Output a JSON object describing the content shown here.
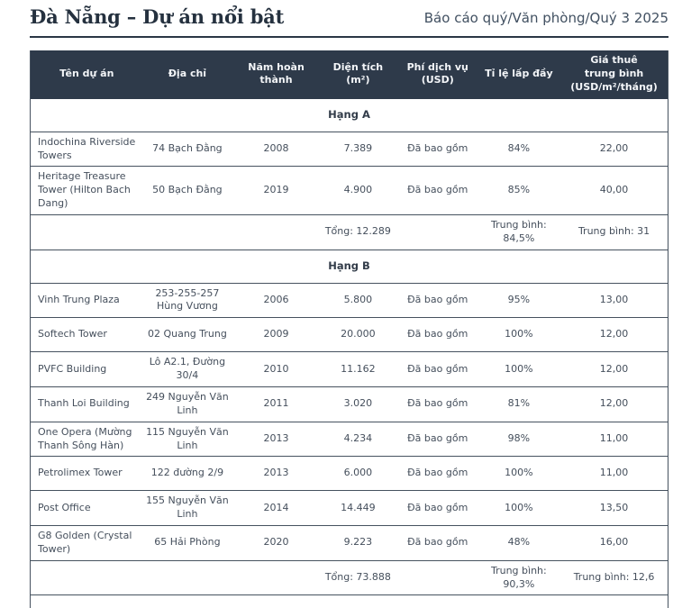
{
  "header": {
    "title": "Đà Nẵng – Dự án nổi bật",
    "report_path": "Báo cáo quý/Văn phòng/Quý 3 2025"
  },
  "table": {
    "columns": [
      "Tên dự án",
      "Địa chỉ",
      "Năm hoàn\nthành",
      "Diện tích\n(m²)",
      "Phí dịch vụ\n(USD)",
      "Tỉ lệ lấp đầy",
      "Giá thuê\ntrung bình\n(USD/m²/tháng)"
    ],
    "sections": [
      {
        "label": "Hạng A",
        "rows": [
          [
            "Indochina Riverside Towers",
            "74 Bạch Đằng",
            "2008",
            "7.389",
            "Đã bao gồm",
            "84%",
            "22,00"
          ],
          [
            "Heritage Treasure Tower (Hilton Bach Dang)",
            "50 Bạch Đằng",
            "2019",
            "4.900",
            "Đã bao gồm",
            "85%",
            "40,00"
          ]
        ],
        "summary": [
          "",
          "",
          "",
          "Tổng: 12.289",
          "",
          "Trung bình: 84,5%",
          "Trung bình: 31"
        ]
      },
      {
        "label": "Hạng B",
        "rows": [
          [
            "Vinh Trung Plaza",
            "253-255-257 Hùng Vương",
            "2006",
            "5.800",
            "Đã bao gồm",
            "95%",
            "13,00"
          ],
          [
            "Softech Tower",
            "02 Quang Trung",
            "2009",
            "20.000",
            "Đã bao gồm",
            "100%",
            "12,00"
          ],
          [
            "PVFC Building",
            "Lô A2.1, Đường 30/4",
            "2010",
            "11.162",
            "Đã bao gồm",
            "100%",
            "12,00"
          ],
          [
            "Thanh Loi Building",
            "249 Nguyễn Văn Linh",
            "2011",
            "3.020",
            "Đã bao gồm",
            "81%",
            "12,00"
          ],
          [
            "One Opera (Mường Thanh Sông Hàn)",
            "115 Nguyễn Văn Linh",
            "2013",
            "4.234",
            "Đã bao gồm",
            "98%",
            "11,00"
          ],
          [
            "Petrolimex Tower",
            "122 đường 2/9",
            "2013",
            "6.000",
            "Đã bao gồm",
            "100%",
            "11,00"
          ],
          [
            "Post Office",
            "155 Nguyễn Văn Linh",
            "2014",
            "14.449",
            "Đã bao gồm",
            "100%",
            "13,50"
          ],
          [
            "G8 Golden (Crystal Tower)",
            "65 Hải Phòng",
            "2020",
            "9.223",
            "Đã bao gồm",
            "48%",
            "16,00"
          ]
        ],
        "summary": [
          "",
          "",
          "",
          "Tổng: 73.888",
          "",
          "Trung bình: 90,3%",
          "Trung bình: 12,6"
        ]
      }
    ]
  },
  "colors": {
    "header_bg": "#2e3a4a",
    "header_text": "#f3f5f8",
    "body_text": "#454f5c",
    "border": "#46525f",
    "title_text": "#25313f"
  }
}
